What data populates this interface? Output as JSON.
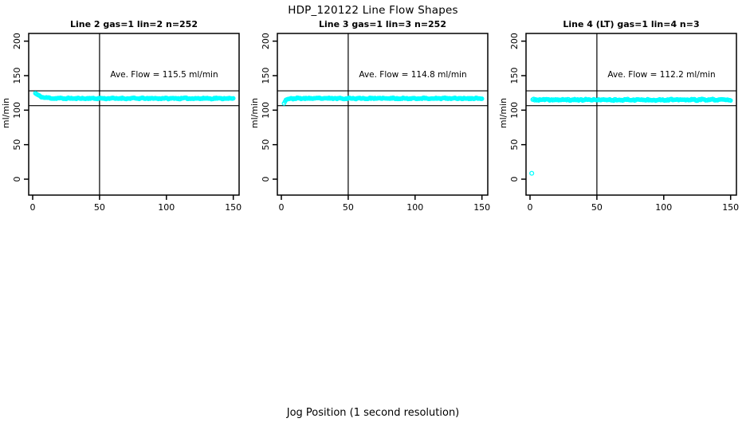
{
  "header": {
    "title": "HDP_120122  Line Flow Shapes"
  },
  "footer": {
    "xlabel": "Jog Position (1 second resolution)"
  },
  "colors": {
    "points": "#00FFFF",
    "axis": "#000000",
    "background": "#FFFFFF",
    "text": "#000000"
  },
  "axes": {
    "ylabel": "ml/min",
    "y_ticks": [
      0,
      50,
      100,
      150,
      200
    ],
    "x_ticks": [
      0,
      50,
      100,
      150
    ],
    "xlim": [
      -3,
      154
    ],
    "ylim": [
      -23,
      211
    ]
  },
  "chart_data": [
    {
      "type": "scatter",
      "title": "Line 2 gas=1 lin=2 n=252",
      "gas": 1,
      "lin": 2,
      "n": 252,
      "ave_flow_label": "Ave. Flow =  115.5  ml/min",
      "ave_flow_ml_min": 115.5,
      "ref_line_upper": 128,
      "ref_line_lower": 106.5,
      "vline_x": 50,
      "series": {
        "x_start": 2,
        "x_end": 150,
        "n_points": 199,
        "start_value": 124.5,
        "settle_value": 117,
        "decay_tau": 4,
        "jitter": 0.9,
        "seed": 11
      },
      "outliers": []
    },
    {
      "type": "scatter",
      "title": "Line 3 gas=1 lin=3 n=252",
      "gas": 1,
      "lin": 3,
      "n": 252,
      "ave_flow_label": "Ave. Flow =  114.8  ml/min",
      "ave_flow_ml_min": 114.8,
      "ref_line_upper": 128,
      "ref_line_lower": 106.5,
      "vline_x": 50,
      "series": {
        "x_start": 2,
        "x_end": 150,
        "n_points": 199,
        "start_value": 110.5,
        "settle_value": 117,
        "decay_tau": 1.5,
        "jitter": 0.9,
        "seed": 23
      },
      "outliers": []
    },
    {
      "type": "scatter",
      "title": "Line 4 (LT) gas=1 lin=4 n=3",
      "gas": 1,
      "lin": 4,
      "n": 3,
      "ave_flow_label": "Ave. Flow =  112.2  ml/min",
      "ave_flow_ml_min": 112.2,
      "ref_line_upper": 128,
      "ref_line_lower": 106.5,
      "vline_x": 50,
      "series": {
        "x_start": 2,
        "x_end": 150,
        "n_points": 199,
        "start_value": 115,
        "settle_value": 115,
        "decay_tau": 1,
        "jitter": 1.2,
        "seed": 37
      },
      "outliers": [
        {
          "x": 1.3,
          "y": 8.5
        }
      ]
    }
  ]
}
